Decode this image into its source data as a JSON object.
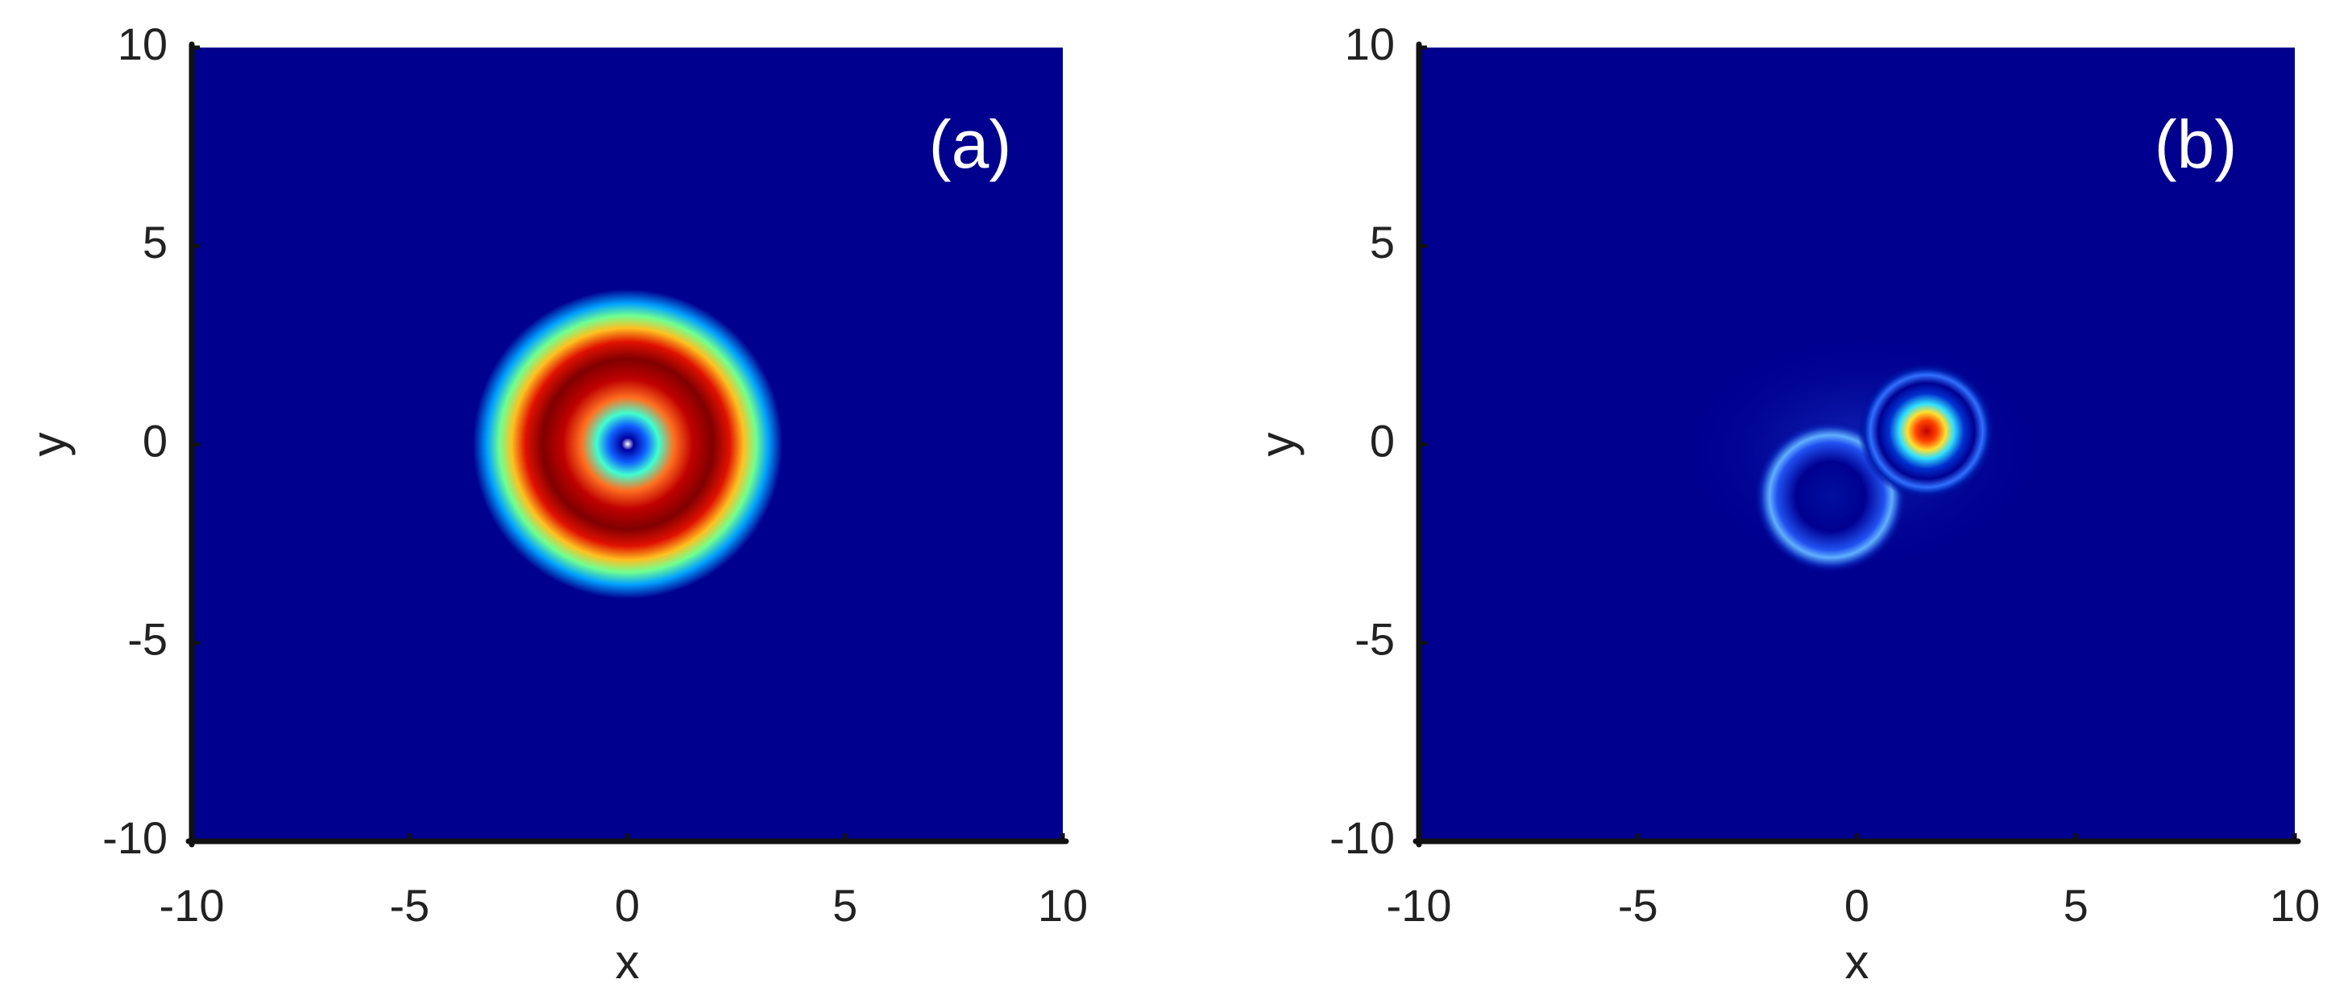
{
  "chart_data": [
    {
      "type": "heatmap",
      "annotation": "(a)",
      "xlabel": "x",
      "ylabel": "y",
      "xlim": [
        -10,
        10
      ],
      "ylim": [
        -10,
        10
      ],
      "xticks": [
        -10,
        -5,
        0,
        5,
        10
      ],
      "yticks": [
        -10,
        -5,
        0,
        5,
        10
      ]
    },
    {
      "type": "heatmap",
      "annotation": "(b)",
      "xlabel": "x",
      "ylabel": "y",
      "xlim": [
        -10,
        10
      ],
      "ylim": [
        -10,
        10
      ],
      "xticks": [
        -10,
        -5,
        0,
        5,
        10
      ],
      "yticks": [
        -10,
        -5,
        0,
        5,
        10
      ]
    }
  ]
}
